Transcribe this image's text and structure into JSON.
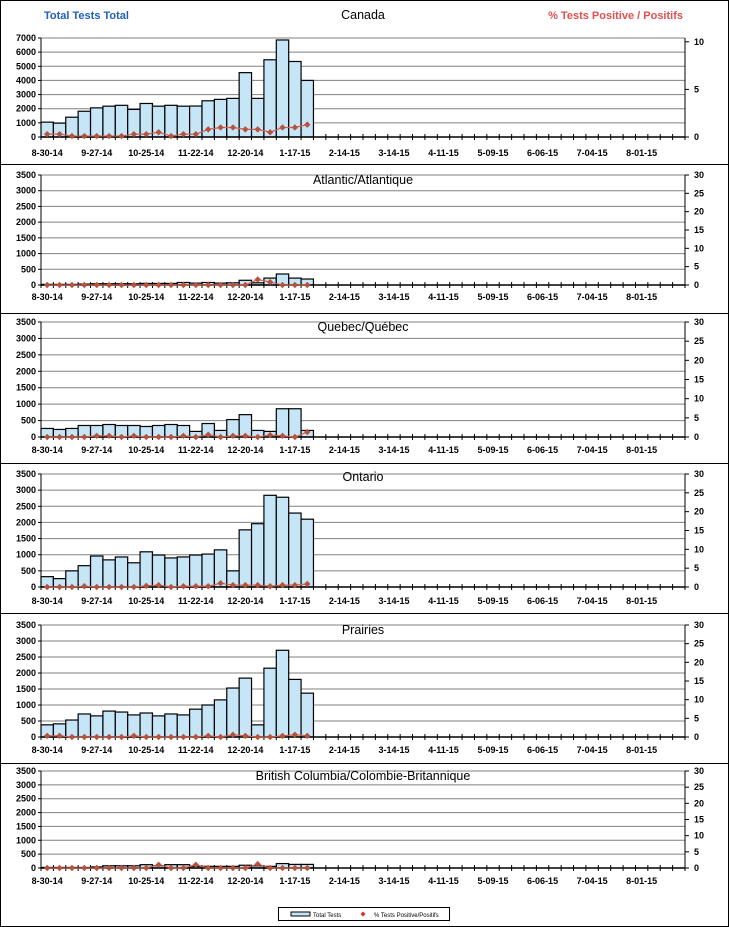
{
  "header": {
    "left_axis_title": "Total Tests Total",
    "right_axis_title": "% Tests Positive / Positifs"
  },
  "colors": {
    "bar_fill": "#c6e6f8",
    "marker": "#b5533c",
    "left_title": "#1f5fbf",
    "right_title": "#e05050"
  },
  "legend": {
    "bars": "Total Tests",
    "markers": "% Tests Positive/Positifs"
  },
  "chart_data": [
    {
      "type": "bar",
      "title": "Canada",
      "x_tick_labels": [
        "8-30-14",
        "9-27-14",
        "10-25-14",
        "11-22-14",
        "12-20-14",
        "1-17-15",
        "2-14-15",
        "3-14-15",
        "4-11-15",
        "5-09-15",
        "6-06-15",
        "7-04-15",
        "8-01-15"
      ],
      "weeks_total": 52,
      "ylim": [
        0,
        7000
      ],
      "yticks": [
        0,
        1000,
        2000,
        3000,
        4000,
        5000,
        6000,
        7000
      ],
      "y2lim": [
        0,
        10.4
      ],
      "y2ticks": [
        0,
        5,
        10
      ],
      "series": [
        {
          "name": "Total Tests",
          "values": [
            1050,
            980,
            1400,
            1820,
            2060,
            2180,
            2240,
            1950,
            2370,
            2180,
            2240,
            2180,
            2190,
            2560,
            2660,
            2730,
            4550,
            2730,
            5460,
            6860,
            5340,
            4000
          ]
        },
        {
          "name": "% Tests Positive/Positifs",
          "axis": "right",
          "values": [
            0.3,
            0.3,
            0.1,
            0.1,
            0.1,
            0.1,
            0.1,
            0.3,
            0.3,
            0.5,
            0.1,
            0.3,
            0.3,
            0.8,
            1.0,
            1.0,
            0.8,
            0.8,
            0.5,
            1.0,
            1.0,
            1.3
          ]
        }
      ]
    },
    {
      "type": "bar",
      "title": "Atlantic/Atlantique",
      "x_tick_labels": [
        "8-30-14",
        "9-27-14",
        "10-25-14",
        "11-22-14",
        "12-20-14",
        "1-17-15",
        "2-14-15",
        "3-14-15",
        "4-11-15",
        "5-09-15",
        "6-06-15",
        "7-04-15",
        "8-01-15"
      ],
      "weeks_total": 52,
      "ylim": [
        0,
        3500
      ],
      "yticks": [
        0,
        500,
        1000,
        1500,
        2000,
        2500,
        3000,
        3500
      ],
      "y2lim": [
        0,
        30
      ],
      "y2ticks": [
        0,
        5,
        10,
        15,
        20,
        25,
        30
      ],
      "series": [
        {
          "name": "Total Tests",
          "values": [
            20,
            20,
            20,
            30,
            40,
            40,
            40,
            40,
            50,
            50,
            50,
            80,
            60,
            80,
            60,
            70,
            150,
            70,
            220,
            350,
            220,
            190
          ]
        },
        {
          "name": "% Tests Positive/Positifs",
          "axis": "right",
          "values": [
            0,
            0,
            0,
            0,
            0,
            0,
            0,
            0,
            0,
            0,
            0,
            0,
            0,
            0,
            0,
            0,
            0,
            1.5,
            0.8,
            0,
            0,
            0
          ]
        }
      ]
    },
    {
      "type": "bar",
      "title": "Quebec/Québec",
      "x_tick_labels": [
        "8-30-14",
        "9-27-14",
        "10-25-14",
        "11-22-14",
        "12-20-14",
        "1-17-15",
        "2-14-15",
        "3-14-15",
        "4-11-15",
        "5-09-15",
        "6-06-15",
        "7-04-15",
        "8-01-15"
      ],
      "weeks_total": 52,
      "ylim": [
        0,
        3500
      ],
      "yticks": [
        0,
        500,
        1000,
        1500,
        2000,
        2500,
        3000,
        3500
      ],
      "y2lim": [
        0,
        30
      ],
      "y2ticks": [
        0,
        5,
        10,
        15,
        20,
        25,
        30
      ],
      "series": [
        {
          "name": "Total Tests",
          "values": [
            260,
            230,
            260,
            350,
            350,
            380,
            350,
            350,
            320,
            350,
            380,
            350,
            170,
            410,
            200,
            530,
            680,
            200,
            170,
            860,
            860,
            200
          ]
        },
        {
          "name": "% Tests Positive/Positifs",
          "axis": "right",
          "values": [
            0,
            0,
            0,
            0,
            0.3,
            0.3,
            0,
            0.3,
            0,
            0,
            0,
            0.3,
            0,
            0.6,
            0,
            0.3,
            0.3,
            0,
            0.5,
            0.3,
            0,
            1.3
          ]
        }
      ]
    },
    {
      "type": "bar",
      "title": "Ontario",
      "x_tick_labels": [
        "8-30-14",
        "9-27-14",
        "10-25-14",
        "11-22-14",
        "12-20-14",
        "1-17-15",
        "2-14-15",
        "3-14-15",
        "4-11-15",
        "5-09-15",
        "6-06-15",
        "7-04-15",
        "8-01-15"
      ],
      "weeks_total": 52,
      "ylim": [
        0,
        3500
      ],
      "yticks": [
        0,
        500,
        1000,
        1500,
        2000,
        2500,
        3000,
        3500
      ],
      "y2lim": [
        0,
        30
      ],
      "y2ticks": [
        0,
        5,
        10,
        15,
        20,
        25,
        30
      ],
      "series": [
        {
          "name": "Total Tests",
          "values": [
            320,
            260,
            500,
            660,
            960,
            840,
            930,
            750,
            1090,
            990,
            900,
            930,
            990,
            1020,
            1150,
            500,
            1770,
            1960,
            2840,
            2780,
            2290,
            2100
          ]
        },
        {
          "name": "% Tests Positive/Positifs",
          "axis": "right",
          "values": [
            0,
            0,
            0,
            0.2,
            0,
            0,
            0,
            0,
            0.3,
            0.5,
            0,
            0.2,
            0.2,
            0.2,
            1.0,
            0.5,
            0.5,
            0.5,
            0.2,
            0.5,
            0.5,
            0.8
          ]
        }
      ]
    },
    {
      "type": "bar",
      "title": "Prairies",
      "x_tick_labels": [
        "8-30-14",
        "9-27-14",
        "10-25-14",
        "11-22-14",
        "12-20-14",
        "1-17-15",
        "2-14-15",
        "3-14-15",
        "4-11-15",
        "5-09-15",
        "6-06-15",
        "7-04-15",
        "8-01-15"
      ],
      "weeks_total": 52,
      "ylim": [
        0,
        3500
      ],
      "yticks": [
        0,
        500,
        1000,
        1500,
        2000,
        2500,
        3000,
        3500
      ],
      "y2lim": [
        0,
        30
      ],
      "y2ticks": [
        0,
        5,
        10,
        15,
        20,
        25,
        30
      ],
      "series": [
        {
          "name": "Total Tests",
          "values": [
            380,
            410,
            530,
            720,
            660,
            810,
            780,
            690,
            750,
            660,
            720,
            690,
            870,
            1000,
            1160,
            1530,
            1840,
            380,
            2150,
            2710,
            1800,
            1370
          ]
        },
        {
          "name": "% Tests Positive/Positifs",
          "axis": "right",
          "values": [
            0.3,
            0.3,
            0,
            0,
            0,
            0,
            0,
            0.3,
            0,
            0,
            0,
            0,
            0,
            0.3,
            0,
            0.6,
            0.3,
            0,
            0,
            0.3,
            0.6,
            0.3
          ]
        }
      ]
    },
    {
      "type": "bar",
      "title": "British Columbia/Colombie-Britannique",
      "x_tick_labels": [
        "8-30-14",
        "9-27-14",
        "10-25-14",
        "11-22-14",
        "12-20-14",
        "1-17-15",
        "2-14-15",
        "3-14-15",
        "4-11-15",
        "5-09-15",
        "6-06-15",
        "7-04-15",
        "8-01-15"
      ],
      "weeks_total": 52,
      "ylim": [
        0,
        3500
      ],
      "yticks": [
        0,
        500,
        1000,
        1500,
        2000,
        2500,
        3000,
        3500
      ],
      "y2lim": [
        0,
        30
      ],
      "y2ticks": [
        0,
        5,
        10,
        15,
        20,
        25,
        30
      ],
      "series": [
        {
          "name": "Total Tests",
          "values": [
            20,
            20,
            20,
            20,
            40,
            80,
            80,
            80,
            120,
            80,
            120,
            120,
            60,
            60,
            60,
            60,
            100,
            80,
            60,
            160,
            130,
            130
          ]
        },
        {
          "name": "% Tests Positive/Positifs",
          "axis": "right",
          "values": [
            0,
            0,
            0,
            0,
            0,
            0,
            0,
            0,
            0,
            1.0,
            0,
            0,
            1.0,
            0,
            0,
            0,
            0,
            1.2,
            0,
            0,
            0,
            0
          ]
        }
      ]
    }
  ]
}
